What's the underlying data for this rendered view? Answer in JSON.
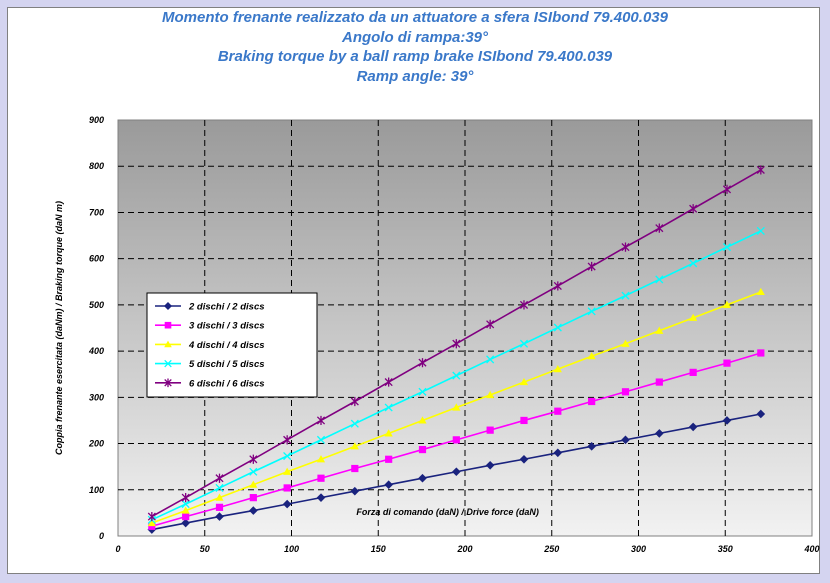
{
  "chart_data": {
    "type": "line",
    "title_lines": [
      "Momento frenante realizzato da un attuatore a sfera  ISIbond 79.400.039",
      "Angolo di rampa:39°",
      "Braking torque by a ball ramp brake ISIbond 79.400.039",
      "Ramp angle: 39°"
    ],
    "xlabel": "Forza di comando (daN) / Drive force (daN)",
    "ylabel": "Coppia frenante esercitata (daNm) / Braking torque (daN m)",
    "xlim": [
      0,
      400
    ],
    "ylim": [
      0,
      900
    ],
    "x_ticks": [
      "0",
      "50",
      "100",
      "150",
      "200",
      "250",
      "300",
      "350",
      "400"
    ],
    "y_ticks": [
      "0",
      "100",
      "200",
      "300",
      "400",
      "500",
      "600",
      "700",
      "800",
      "900"
    ],
    "grid": true,
    "legend_position": "left",
    "x": [
      19.5,
      39,
      58.5,
      78,
      97.5,
      117,
      136.5,
      156,
      175.5,
      195,
      214.5,
      234,
      253.5,
      273,
      292.5,
      312,
      331.5,
      351,
      370.5
    ],
    "series": [
      {
        "name": "2 dischi  / 2 discs",
        "color": "#1a237e",
        "marker": "diamond",
        "values": [
          14,
          28,
          42,
          55,
          69,
          83,
          97,
          111,
          125,
          139,
          153,
          166,
          180,
          194,
          208,
          222,
          236,
          250,
          264
        ]
      },
      {
        "name": "3 dischi / 3 discs",
        "color": "#ff00ff",
        "marker": "square",
        "values": [
          21,
          42,
          62,
          83,
          104,
          125,
          146,
          166,
          187,
          208,
          229,
          250,
          270,
          291,
          312,
          333,
          354,
          374,
          396
        ]
      },
      {
        "name": "4 dischi / 4 discs",
        "color": "#ffff00",
        "marker": "triangle",
        "values": [
          28,
          55,
          83,
          111,
          139,
          166,
          194,
          222,
          250,
          278,
          305,
          333,
          361,
          389,
          416,
          444,
          472,
          500,
          528
        ]
      },
      {
        "name": "5 dischi / 5 discs",
        "color": "#00ffff",
        "marker": "x",
        "values": [
          35,
          69,
          104,
          139,
          173,
          208,
          243,
          278,
          312,
          347,
          382,
          416,
          451,
          486,
          520,
          555,
          590,
          625,
          660
        ]
      },
      {
        "name": "6 dischi / 6 discs",
        "color": "#800080",
        "marker": "star",
        "values": [
          42,
          83,
          125,
          166,
          208,
          250,
          291,
          333,
          375,
          416,
          458,
          500,
          541,
          583,
          625,
          666,
          708,
          750,
          792
        ]
      }
    ]
  }
}
